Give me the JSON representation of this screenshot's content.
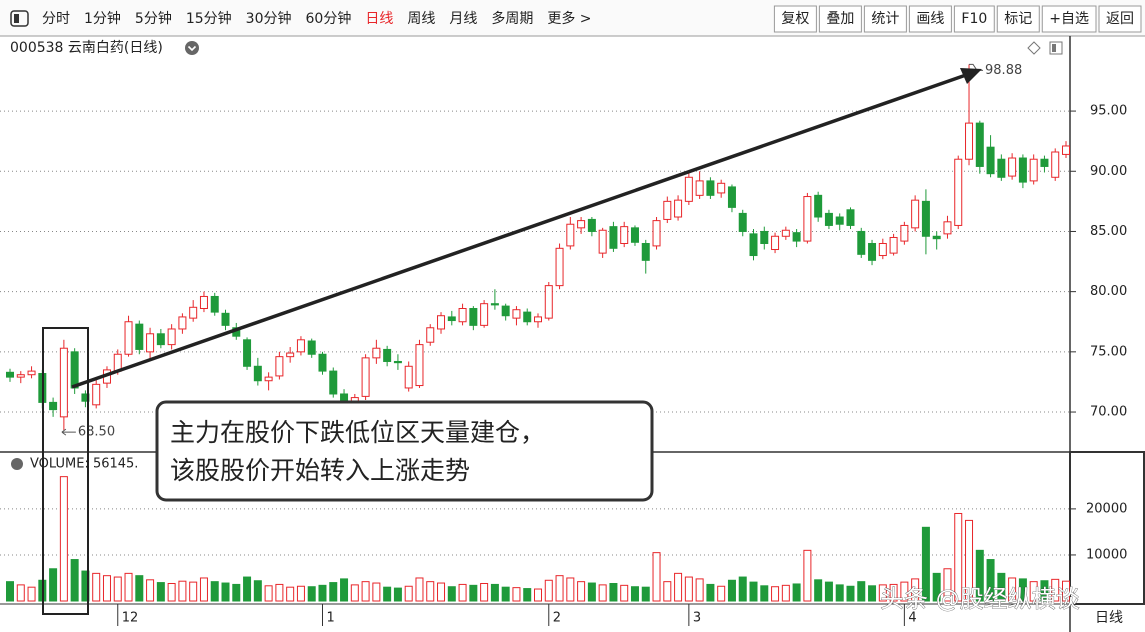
{
  "toolbar": {
    "periods": [
      "分时",
      "1分钟",
      "5分钟",
      "15分钟",
      "30分钟",
      "60分钟",
      "日线",
      "周线",
      "月线",
      "多周期",
      "更多 >"
    ],
    "tools": [
      "复权",
      "叠加",
      "统计",
      "画线",
      "F10",
      "标记",
      "+自选",
      "返回"
    ]
  },
  "header": {
    "title": "000538 云南白药(日线)"
  },
  "watermark": "头条 @股经纵横谈",
  "chart_data": {
    "type": "candlestick",
    "categories": [
      null,
      null,
      null,
      null,
      null,
      null,
      null,
      null,
      null,
      null,
      "12",
      null,
      null,
      null,
      null,
      null,
      null,
      null,
      null,
      null,
      null,
      null,
      null,
      null,
      null,
      null,
      null,
      null,
      null,
      "1",
      null,
      null,
      null,
      null,
      null,
      null,
      null,
      null,
      null,
      null,
      null,
      null,
      null,
      null,
      null,
      null,
      null,
      null,
      null,
      null,
      "2",
      null,
      null,
      null,
      null,
      null,
      null,
      null,
      null,
      null,
      null,
      null,
      null,
      "3",
      null,
      null,
      null,
      null,
      null,
      null,
      null,
      null,
      null,
      null,
      null,
      null,
      null,
      null,
      null,
      null,
      null,
      null,
      null,
      "4",
      null,
      null,
      null,
      null,
      null,
      null,
      null,
      null,
      null,
      null,
      null,
      null,
      null,
      null,
      null
    ],
    "open": [
      73.3,
      72.9,
      73.1,
      73.2,
      70.8,
      69.6,
      75.0,
      71.5,
      70.6,
      72.4,
      73.4,
      74.8,
      77.3,
      75.0,
      76.5,
      75.6,
      76.9,
      77.8,
      78.6,
      79.6,
      78.2,
      77.0,
      76.0,
      73.8,
      72.6,
      73.0,
      74.6,
      75.0,
      75.9,
      74.8,
      73.4,
      71.5,
      70.3,
      71.3,
      74.5,
      75.2,
      74.2,
      72.0,
      72.2,
      75.8,
      76.9,
      77.9,
      77.5,
      78.6,
      77.2,
      79.0,
      78.8,
      77.8,
      78.3,
      77.5,
      77.8,
      80.5,
      83.8,
      85.3,
      86.0,
      83.2,
      85.4,
      84.0,
      85.3,
      84.0,
      83.8,
      86.0,
      86.2,
      87.5,
      88.0,
      89.2,
      88.2,
      88.7,
      86.5,
      84.8,
      85.0,
      83.5,
      84.6,
      84.9,
      84.2,
      88.0,
      86.5,
      86.2,
      86.8,
      85.0,
      84.0,
      83.0,
      83.2,
      84.2,
      85.3,
      87.5,
      84.6,
      84.8,
      85.5,
      91.0,
      94.0,
      92.0,
      91.0,
      89.6,
      91.1,
      89.2,
      91.0,
      89.5,
      91.4
    ],
    "high": [
      73.6,
      73.4,
      73.8,
      73.5,
      71.2,
      76.0,
      75.3,
      71.8,
      72.7,
      73.8,
      75.2,
      78.0,
      77.6,
      77.0,
      76.9,
      77.3,
      78.2,
      79.3,
      80.0,
      79.9,
      78.5,
      77.4,
      76.2,
      74.5,
      73.3,
      75.0,
      75.4,
      76.3,
      76.1,
      75.0,
      73.7,
      71.9,
      71.5,
      74.8,
      76.0,
      75.5,
      74.8,
      74.2,
      76.0,
      77.3,
      78.3,
      78.4,
      79.0,
      78.8,
      79.3,
      80.2,
      79.0,
      78.8,
      78.6,
      78.2,
      80.8,
      84.0,
      86.2,
      86.2,
      86.2,
      85.3,
      85.8,
      85.8,
      85.5,
      84.3,
      86.2,
      87.9,
      88.0,
      89.9,
      90.0,
      89.5,
      89.3,
      88.9,
      86.8,
      85.2,
      85.4,
      84.9,
      85.4,
      85.2,
      88.2,
      88.3,
      86.8,
      86.5,
      87.0,
      85.3,
      84.3,
      84.4,
      84.8,
      85.8,
      88.0,
      88.5,
      85.0,
      86.3,
      91.3,
      98.88,
      94.2,
      93.0,
      91.4,
      91.5,
      91.4,
      91.4,
      91.3,
      91.9,
      92.5
    ],
    "low": [
      72.5,
      72.4,
      72.8,
      70.3,
      69.6,
      68.5,
      71.5,
      70.4,
      70.3,
      72.0,
      73.1,
      74.6,
      74.8,
      74.2,
      75.3,
      75.2,
      76.5,
      77.5,
      78.3,
      78.0,
      76.8,
      76.0,
      73.5,
      72.2,
      71.8,
      72.7,
      74.1,
      74.7,
      74.5,
      73.1,
      71.2,
      69.0,
      69.8,
      71.0,
      74.0,
      73.8,
      73.5,
      71.7,
      72.0,
      75.5,
      76.5,
      77.2,
      77.2,
      76.8,
      77.0,
      78.5,
      77.6,
      77.2,
      77.2,
      77.0,
      77.6,
      80.2,
      83.5,
      84.8,
      84.6,
      82.8,
      83.3,
      83.7,
      83.8,
      81.5,
      83.5,
      85.7,
      85.9,
      87.2,
      87.7,
      87.7,
      87.8,
      86.6,
      84.6,
      82.6,
      83.5,
      83.2,
      84.3,
      83.7,
      84.0,
      85.8,
      85.2,
      85.1,
      85.2,
      82.8,
      82.2,
      82.7,
      83.0,
      83.9,
      85.0,
      83.1,
      83.5,
      84.4,
      85.2,
      90.5,
      89.8,
      89.5,
      89.2,
      89.3,
      88.6,
      88.9,
      89.9,
      89.2,
      91.1
    ],
    "close": [
      72.9,
      73.1,
      73.4,
      70.8,
      70.2,
      75.3,
      72.0,
      70.9,
      72.3,
      73.5,
      74.8,
      77.5,
      75.2,
      76.5,
      75.6,
      76.9,
      77.9,
      78.7,
      79.6,
      78.3,
      77.2,
      76.3,
      73.8,
      72.6,
      72.9,
      74.6,
      74.9,
      76.0,
      74.8,
      73.4,
      71.5,
      70.1,
      71.2,
      74.5,
      75.3,
      74.2,
      74.1,
      73.8,
      75.6,
      77.0,
      78.0,
      77.6,
      78.6,
      77.2,
      79.0,
      78.9,
      78.0,
      78.5,
      77.5,
      77.9,
      80.5,
      83.6,
      85.6,
      85.9,
      85.0,
      85.1,
      83.6,
      85.4,
      84.1,
      82.6,
      85.9,
      87.5,
      87.6,
      89.5,
      89.2,
      88.0,
      89.0,
      87.0,
      85.0,
      83.0,
      84.0,
      84.6,
      85.1,
      84.2,
      87.9,
      86.2,
      85.5,
      85.6,
      85.5,
      83.1,
      82.6,
      84.0,
      84.5,
      85.5,
      87.6,
      84.6,
      84.4,
      85.8,
      91.0,
      94.0,
      90.4,
      89.8,
      89.5,
      91.1,
      89.1,
      91.0,
      90.4,
      91.6,
      92.1
    ],
    "ylim": [
      66.68,
      101.07
    ],
    "yticks": [
      {
        "value": 70,
        "label": "70.00"
      },
      {
        "value": 75,
        "label": "75.00"
      },
      {
        "value": 80,
        "label": "80.00"
      },
      {
        "value": 85,
        "label": "85.00"
      },
      {
        "value": 90,
        "label": "90.00"
      },
      {
        "value": 95,
        "label": "95.00"
      }
    ],
    "grid": true,
    "up_color": "#e8262a",
    "down_color": "#1f9a3a",
    "extreme_labels": [
      {
        "value": 98.88,
        "label": "98.88"
      },
      {
        "value": 68.5,
        "label": "68.50"
      }
    ],
    "volume": {
      "title": "VOLUME: 56145.",
      "values": [
        4200,
        3500,
        3000,
        4500,
        7000,
        27000,
        9000,
        6500,
        6000,
        5500,
        5200,
        6000,
        5500,
        4600,
        4000,
        3800,
        4300,
        4100,
        5000,
        4200,
        3900,
        3600,
        5200,
        4400,
        3300,
        3600,
        3000,
        3200,
        3100,
        3400,
        4000,
        4800,
        3500,
        4200,
        3900,
        3000,
        2800,
        3200,
        5000,
        4200,
        3900,
        3100,
        3600,
        3400,
        3800,
        3600,
        3000,
        2900,
        2700,
        2600,
        4500,
        5500,
        5000,
        4200,
        3900,
        3500,
        3800,
        3400,
        3100,
        3000,
        10500,
        4200,
        6000,
        5200,
        4800,
        3600,
        3200,
        4500,
        5200,
        4100,
        3300,
        3100,
        3400,
        3700,
        11000,
        4600,
        4100,
        3500,
        3200,
        4200,
        3300,
        3500,
        3600,
        4100,
        4800,
        16000,
        6000,
        7000,
        19000,
        17500,
        11000,
        9000,
        6000,
        5000,
        4800,
        4200,
        4400,
        4700,
        4300
      ],
      "ylim": [
        0,
        31700
      ],
      "yticks": [
        10000,
        20000
      ]
    },
    "annotation": [
      "主力在股价下跌低位区天量建仓，",
      "该股股价开始转入上涨走势"
    ],
    "period_label": "日线"
  }
}
